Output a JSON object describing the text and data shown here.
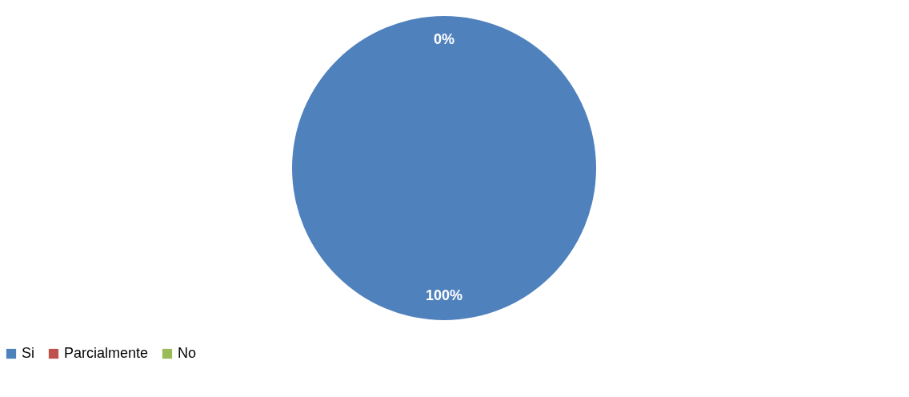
{
  "chart_data": {
    "type": "pie",
    "categories": [
      "Si",
      "Parcialmente",
      "No"
    ],
    "values": [
      100,
      0,
      0
    ],
    "colors": [
      "#4f81bd",
      "#c0504d",
      "#9bbb59"
    ],
    "value_labels": [
      "100%",
      "0%",
      null
    ],
    "legend": "bottom"
  }
}
